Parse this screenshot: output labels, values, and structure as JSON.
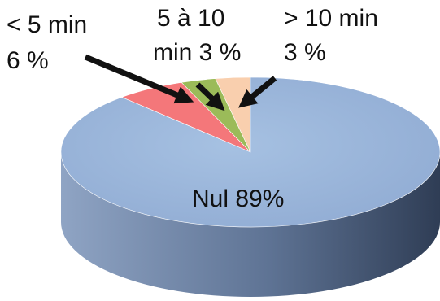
{
  "chart_data": {
    "type": "pie",
    "style": "3d",
    "slices": [
      {
        "label": "Nul",
        "text": "Nul 89%",
        "value": 89,
        "color": "#95B3D7"
      },
      {
        "label": "< 5 min",
        "text_lines": [
          "< 5 min",
          "6 %"
        ],
        "value": 6,
        "color": "#F4777A"
      },
      {
        "label": "5 à 10 min",
        "text_lines": [
          "5 à 10",
          "min 3 %"
        ],
        "value": 3,
        "color": "#9BBB59"
      },
      {
        "label": "> 10 min",
        "text_lines": [
          "> 10 min",
          "3 %"
        ],
        "value": 3,
        "color": "#F9CFAE"
      }
    ],
    "legend": "none"
  }
}
